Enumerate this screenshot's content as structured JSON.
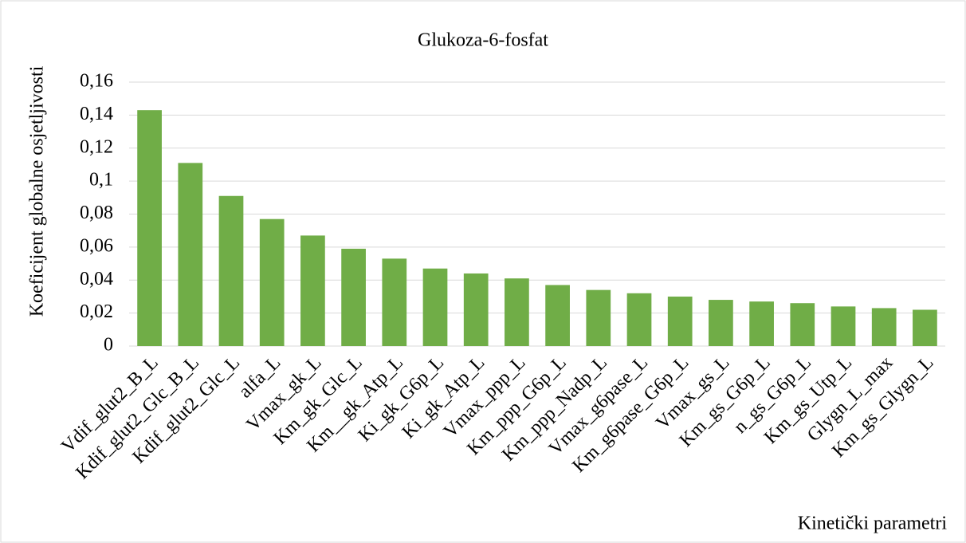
{
  "chart_data": {
    "type": "bar",
    "title": "Glukoza-6-fosfat",
    "y_label": "Koeficijent globalne osjetljivosti",
    "x_label": "Kinetički parametri",
    "categories": [
      "Vdif_glut2_B_L",
      "Kdif_glut2_Glc_B_L",
      "Kdif_glut2_Glc_L",
      "alfa_L",
      "Vmax_gk_L",
      "Km_gk_Glc_L",
      "Km__gk_Atp_L",
      "Ki_gk_G6p_L",
      "Ki_gk_Atp_L",
      "Vmax_ppp_L",
      "Km_ppp_G6p_L",
      "Km_ppp_Nadp_L",
      "Vmax_g6pase_L",
      "Km_g6pase_G6p_L",
      "Vmax_gs_L",
      "Km_gs_G6p_L",
      "n_gs_G6p_L",
      "Km_gs_Utp_L",
      "Glygn_L_max",
      "Km_gs_Glygn_L"
    ],
    "values": [
      0.143,
      0.111,
      0.091,
      0.077,
      0.067,
      0.059,
      0.053,
      0.047,
      0.044,
      0.041,
      0.037,
      0.034,
      0.032,
      0.03,
      0.028,
      0.027,
      0.026,
      0.024,
      0.023,
      0.022
    ],
    "color": "#70ad47",
    "ylim": [
      0,
      0.16
    ],
    "yticks": [
      0,
      {
        "value": 0.02,
        "label": "0,02"
      },
      {
        "value": 0.04,
        "label": "0,04"
      },
      {
        "value": 0.06,
        "label": "0,06"
      },
      {
        "value": 0.08,
        "label": "0,08"
      },
      {
        "value": 0.1,
        "label": "0,1"
      },
      {
        "value": 0.12,
        "label": "0,12"
      },
      {
        "value": 0.14,
        "label": "0,14"
      },
      {
        "value": 0.16,
        "label": "0,16"
      }
    ],
    "grid": true
  }
}
